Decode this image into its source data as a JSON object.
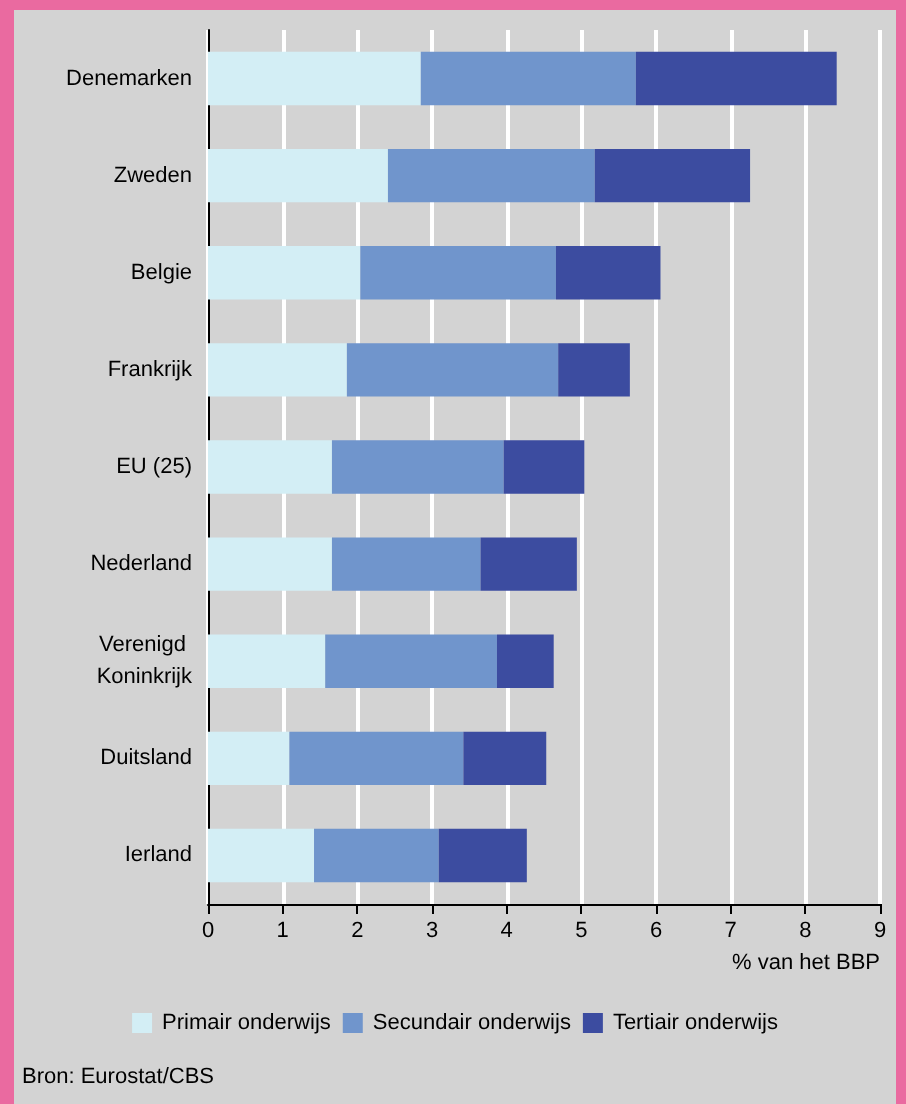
{
  "chart_data": {
    "type": "bar",
    "orientation": "horizontal",
    "stacked": true,
    "categories": [
      "Denemarken",
      "Zweden",
      "Belgie",
      "Frankrijk",
      "EU (25)",
      "Nederland",
      "Verenigd Koninkrijk",
      "Duitsland",
      "Ierland"
    ],
    "series": [
      {
        "name": "Primair onderwijs",
        "color": "#d3eef5",
        "values": [
          2.85,
          2.41,
          2.04,
          1.86,
          1.66,
          1.66,
          1.57,
          1.09,
          1.42
        ]
      },
      {
        "name": "Secundair onderwijs",
        "color": "#7095cc",
        "values": [
          2.88,
          2.77,
          2.62,
          2.83,
          2.3,
          1.99,
          2.3,
          2.33,
          1.67
        ]
      },
      {
        "name": "Tertiair onderwijs",
        "color": "#3c4ca0",
        "values": [
          2.69,
          2.08,
          1.4,
          0.96,
          1.08,
          1.29,
          0.76,
          1.11,
          1.18
        ]
      }
    ],
    "xlabel": "% van het BBP",
    "xlim": [
      0,
      9
    ],
    "xticks": [
      0,
      1,
      2,
      3,
      4,
      5,
      6,
      7,
      8,
      9
    ],
    "grid": "x",
    "legend": "bottom",
    "annotations": [
      "Bron: Eurostat/CBS"
    ]
  }
}
